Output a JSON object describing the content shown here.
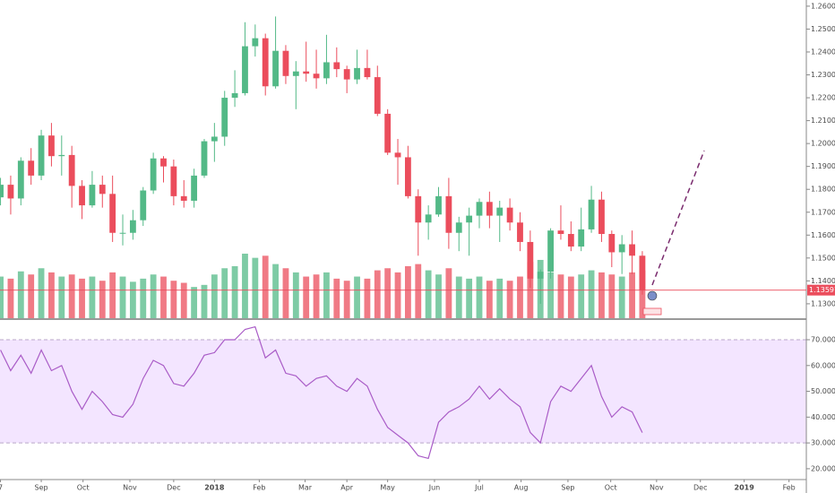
{
  "chart_data": [
    {
      "type": "candlestick",
      "xlim": [
        -0.05,
        79.1
      ],
      "ylim": [
        1.1237,
        1.2627
      ],
      "yticks": [
        {
          "value": 1.26,
          "label": "1.26000"
        },
        {
          "value": 1.25,
          "label": "1.25000"
        },
        {
          "value": 1.24,
          "label": "1.24000"
        },
        {
          "value": 1.23,
          "label": "1.23000"
        },
        {
          "value": 1.22,
          "label": "1.22000"
        },
        {
          "value": 1.21,
          "label": "1.21000"
        },
        {
          "value": 1.2,
          "label": "1.20000"
        },
        {
          "value": 1.19,
          "label": "1.19000"
        },
        {
          "value": 1.18,
          "label": "1.18000"
        },
        {
          "value": 1.17,
          "label": "1.17000"
        },
        {
          "value": 1.16,
          "label": "1.16000"
        },
        {
          "value": 1.15,
          "label": "1.15000"
        },
        {
          "value": 1.14,
          "label": "1.14000"
        },
        {
          "value": 1.13,
          "label": "1.13000"
        }
      ],
      "grid": false,
      "up_color": "#53b987",
      "down_color": "#eb4d5c",
      "last_price": 1.13597,
      "open": [
        1.1765,
        1.182,
        1.176,
        1.1925,
        1.186,
        1.2035,
        1.1945,
        1.195,
        1.1815,
        1.173,
        1.182,
        1.178,
        1.161,
        1.161,
        1.1665,
        1.1795,
        1.1935,
        1.19,
        1.177,
        1.175,
        1.186,
        1.201,
        1.203,
        1.22,
        1.222,
        1.2425,
        1.246,
        1.225,
        1.2405,
        1.2295,
        1.2315,
        1.2305,
        1.2285,
        1.2355,
        1.2325,
        1.228,
        1.233,
        1.229,
        1.213,
        1.196,
        1.194,
        1.177,
        1.1655,
        1.169,
        1.177,
        1.161,
        1.1655,
        1.1685,
        1.1745,
        1.1685,
        1.172,
        1.1655,
        1.157,
        1.141,
        1.144,
        1.162,
        1.1605,
        1.155,
        1.1625,
        1.1755,
        1.1605,
        1.1525,
        1.156,
        1.151
      ],
      "high": [
        1.185,
        1.186,
        1.194,
        1.198,
        1.206,
        1.209,
        1.2035,
        1.199,
        1.184,
        1.188,
        1.186,
        1.186,
        1.169,
        1.171,
        1.181,
        1.196,
        1.1945,
        1.193,
        1.184,
        1.189,
        1.202,
        1.209,
        1.223,
        1.232,
        1.253,
        1.252,
        1.248,
        1.2555,
        1.243,
        1.236,
        1.2445,
        1.241,
        1.2475,
        1.242,
        1.234,
        1.241,
        1.241,
        1.234,
        1.215,
        1.202,
        1.199,
        1.18,
        1.173,
        1.181,
        1.185,
        1.168,
        1.172,
        1.176,
        1.179,
        1.175,
        1.176,
        1.17,
        1.162,
        1.145,
        1.163,
        1.173,
        1.166,
        1.172,
        1.1815,
        1.179,
        1.162,
        1.16,
        1.162,
        1.153
      ],
      "low": [
        1.173,
        1.169,
        1.173,
        1.182,
        1.184,
        1.19,
        1.186,
        1.172,
        1.167,
        1.172,
        1.172,
        1.157,
        1.1555,
        1.158,
        1.164,
        1.178,
        1.183,
        1.173,
        1.172,
        1.172,
        1.185,
        1.192,
        1.199,
        1.216,
        1.221,
        1.238,
        1.221,
        1.224,
        1.226,
        1.215,
        1.227,
        1.224,
        1.226,
        1.229,
        1.222,
        1.226,
        1.228,
        1.212,
        1.195,
        1.182,
        1.176,
        1.151,
        1.158,
        1.168,
        1.154,
        1.153,
        1.151,
        1.163,
        1.163,
        1.157,
        1.162,
        1.153,
        1.137,
        1.13,
        1.141,
        1.158,
        1.153,
        1.153,
        1.161,
        1.157,
        1.146,
        1.143,
        1.143,
        1.134
      ],
      "close": [
        1.182,
        1.176,
        1.1925,
        1.186,
        1.2035,
        1.1945,
        1.195,
        1.1815,
        1.173,
        1.182,
        1.178,
        1.161,
        1.161,
        1.1665,
        1.1795,
        1.1935,
        1.19,
        1.177,
        1.175,
        1.186,
        1.201,
        1.203,
        1.22,
        1.222,
        1.2425,
        1.246,
        1.225,
        1.2405,
        1.2295,
        1.2315,
        1.2305,
        1.2285,
        1.2355,
        1.2325,
        1.228,
        1.233,
        1.229,
        1.213,
        1.196,
        1.194,
        1.177,
        1.1655,
        1.169,
        1.177,
        1.161,
        1.1655,
        1.1685,
        1.1745,
        1.1685,
        1.172,
        1.1655,
        1.157,
        1.141,
        1.144,
        1.162,
        1.1605,
        1.155,
        1.1625,
        1.1755,
        1.1605,
        1.1525,
        1.156,
        1.151,
        1.136
      ],
      "volume": [
        40,
        38,
        45,
        42,
        48,
        44,
        40,
        42,
        38,
        40,
        36,
        44,
        40,
        35,
        38,
        42,
        40,
        36,
        34,
        30,
        32,
        42,
        48,
        50,
        62,
        58,
        60,
        52,
        48,
        44,
        40,
        42,
        44,
        38,
        36,
        40,
        38,
        46,
        48,
        44,
        50,
        52,
        46,
        42,
        48,
        40,
        38,
        40,
        36,
        38,
        36,
        40,
        54,
        56,
        44,
        42,
        40,
        42,
        46,
        44,
        42,
        40,
        44,
        46
      ]
    },
    {
      "type": "line",
      "color": "#a95cc7",
      "xlim": [
        -0.05,
        79.1
      ],
      "ylim": [
        15.8,
        77.3
      ],
      "band": [
        30,
        70
      ],
      "band_color": "#f3e5ff",
      "yticks": [
        {
          "value": 70,
          "label": "70.0000"
        },
        {
          "value": 60,
          "label": "60.0000"
        },
        {
          "value": 50,
          "label": "50.0000"
        },
        {
          "value": 40,
          "label": "40.0000"
        },
        {
          "value": 30,
          "label": "30.0000"
        },
        {
          "value": 20,
          "label": "20.0000"
        }
      ],
      "xticks": [
        {
          "value": 0,
          "label": "7"
        },
        {
          "value": 4.0,
          "label": "Sep"
        },
        {
          "value": 8.1,
          "label": "Oct"
        },
        {
          "value": 12.7,
          "label": "Nov"
        },
        {
          "value": 17.0,
          "label": "Dec"
        },
        {
          "value": 21.0,
          "label": "2018"
        },
        {
          "value": 25.4,
          "label": "Feb"
        },
        {
          "value": 29.9,
          "label": "Mar"
        },
        {
          "value": 34.0,
          "label": "Apr"
        },
        {
          "value": 38.0,
          "label": "May"
        },
        {
          "value": 42.6,
          "label": "Jun"
        },
        {
          "value": 47.0,
          "label": "Jul"
        },
        {
          "value": 51.1,
          "label": "Aug"
        },
        {
          "value": 55.7,
          "label": "Sep"
        },
        {
          "value": 59.9,
          "label": "Oct"
        },
        {
          "value": 64.4,
          "label": "Nov"
        },
        {
          "value": 68.7,
          "label": "Dec"
        },
        {
          "value": 73.0,
          "label": "2019"
        },
        {
          "value": 77.4,
          "label": "Feb"
        }
      ],
      "values": [
        66,
        58,
        64,
        57,
        66,
        58,
        60,
        50,
        43,
        50,
        46,
        41,
        40,
        45,
        55,
        62,
        60,
        53,
        52,
        57,
        64,
        65,
        70,
        70,
        74,
        75,
        63,
        66,
        57,
        56,
        52,
        55,
        56,
        52,
        50,
        55,
        52,
        43,
        36,
        33,
        30,
        25,
        24,
        38,
        42,
        44,
        47,
        52,
        47,
        51,
        47,
        44,
        34,
        30,
        46,
        52,
        50,
        55,
        60,
        48,
        40,
        44,
        42,
        34
      ]
    }
  ]
}
